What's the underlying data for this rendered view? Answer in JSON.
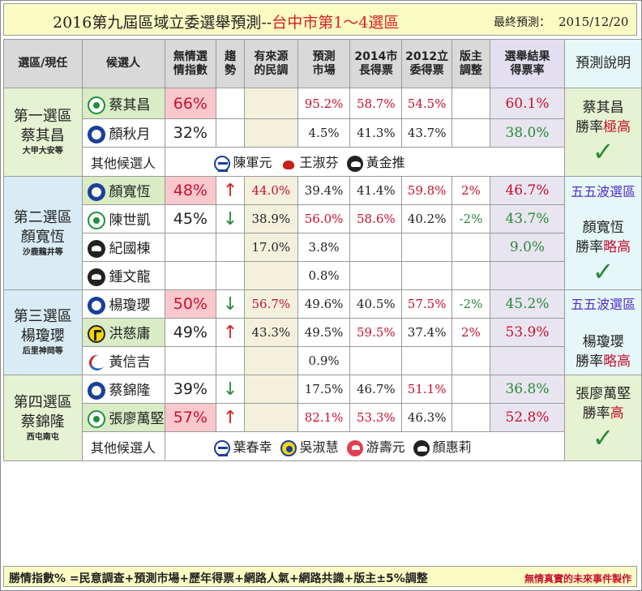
{
  "header": {
    "title_main": "2016第九屆區域立委選舉預測--",
    "title_region": "台中市第1～4選區",
    "pred_label": "最終預測：",
    "pred_date": "2015/12/20"
  },
  "columns": [
    "選區/現任",
    "候選人",
    "無情選情指數",
    "趨勢",
    "有來源的民調",
    "預測市場",
    "2014市長得票",
    "2012立委得票",
    "版主調整",
    "選舉結果得票率",
    "預測說明"
  ],
  "districts": [
    {
      "name": "第一選區",
      "incumbent": "蔡其昌",
      "sub": "大甲大安等",
      "rows": [
        {
          "party": "dpp",
          "name": "蔡其昌",
          "index": "66%",
          "trend": "",
          "poll": "",
          "market": "95.2%",
          "y2014": "58.7%",
          "y2012": "54.5%",
          "adj": "",
          "result": "60.1%"
        },
        {
          "party": "kmt",
          "name": "顏秋月",
          "index": "32%",
          "trend": "",
          "poll": "",
          "market": "4.5%",
          "y2014": "41.3%",
          "y2012": "43.7%",
          "adj": "",
          "result": "38.0%"
        }
      ],
      "others_label": "其他候選人",
      "others": [
        "陳軍元",
        "王淑芬",
        "黃金推"
      ],
      "explain": {
        "top": "",
        "name": "蔡其昌",
        "rate_pre": "勝率",
        "rate": "極高",
        "check": "✓"
      }
    },
    {
      "name": "第二選區",
      "incumbent": "顏寬恆",
      "sub": "沙鹿龍井等",
      "rows": [
        {
          "party": "kmt",
          "name": "顏寬恆",
          "index": "48%",
          "trend": "↑",
          "poll": "44.0%",
          "market": "39.4%",
          "y2014": "41.4%",
          "y2012": "59.8%",
          "adj": "2%",
          "result": "46.7%"
        },
        {
          "party": "dpp",
          "name": "陳世凱",
          "index": "45%",
          "trend": "↓",
          "poll": "38.9%",
          "market": "56.0%",
          "y2014": "58.6%",
          "y2012": "40.2%",
          "adj": "-2%",
          "result": "43.7%"
        },
        {
          "party": "ind",
          "name": "紀國棟",
          "index": "",
          "trend": "",
          "poll": "17.0%",
          "market": "3.8%",
          "y2014": "",
          "y2012": "",
          "adj": "",
          "result": "9.0%"
        },
        {
          "party": "ind",
          "name": "鍾文龍",
          "index": "",
          "trend": "",
          "poll": "",
          "market": "0.8%",
          "y2014": "",
          "y2012": "",
          "adj": "",
          "result": ""
        }
      ],
      "explain": {
        "top": "五五波選區",
        "name": "顏寬恆",
        "rate_pre": "勝率",
        "rate": "略高",
        "check": "✓"
      }
    },
    {
      "name": "第三選區",
      "incumbent": "楊瓊瓔",
      "sub": "后里神岡等",
      "rows": [
        {
          "party": "kmt",
          "name": "楊瓊瓔",
          "index": "50%",
          "trend": "↓",
          "poll": "56.7%",
          "market": "49.6%",
          "y2014": "40.5%",
          "y2012": "57.5%",
          "adj": "-2%",
          "result": "45.2%"
        },
        {
          "party": "npp",
          "name": "洪慈庸",
          "index": "49%",
          "trend": "↑",
          "poll": "43.3%",
          "market": "49.5%",
          "y2014": "59.5%",
          "y2012": "37.4%",
          "adj": "2%",
          "result": "53.9%"
        },
        {
          "party": "tsu",
          "name": "黃信吉",
          "index": "",
          "trend": "",
          "poll": "",
          "market": "0.9%",
          "y2014": "",
          "y2012": "",
          "adj": "",
          "result": ""
        }
      ],
      "explain": {
        "top": "五五波選區",
        "name": "楊瓊瓔",
        "rate_pre": "勝率",
        "rate": "略高",
        "check": ""
      }
    },
    {
      "name": "第四選區",
      "incumbent": "蔡錦隆",
      "sub": "西屯南屯",
      "rows": [
        {
          "party": "kmt",
          "name": "蔡錦隆",
          "index": "39%",
          "trend": "↓",
          "poll": "",
          "market": "17.5%",
          "y2014": "46.7%",
          "y2012": "51.1%",
          "adj": "",
          "result": "36.8%"
        },
        {
          "party": "dpp",
          "name": "張廖萬堅",
          "index": "57%",
          "trend": "↑",
          "poll": "",
          "market": "82.1%",
          "y2014": "53.3%",
          "y2012": "46.3%",
          "adj": "",
          "result": "52.8%"
        }
      ],
      "others_label": "其他候選人",
      "others": [
        "葉春幸",
        "吳淑慧",
        "游壽元",
        "顏惠莉"
      ],
      "explain": {
        "top": "",
        "name": "張廖萬堅",
        "rate_pre": "勝率",
        "rate": "高",
        "check": "✓"
      }
    }
  ],
  "footer": {
    "formula": "勝情指數% =民意調查+預測市場+歷年得票+網路人氣+網路共識+版主±5%調整",
    "credit": "無情真實的未來事件製作"
  }
}
